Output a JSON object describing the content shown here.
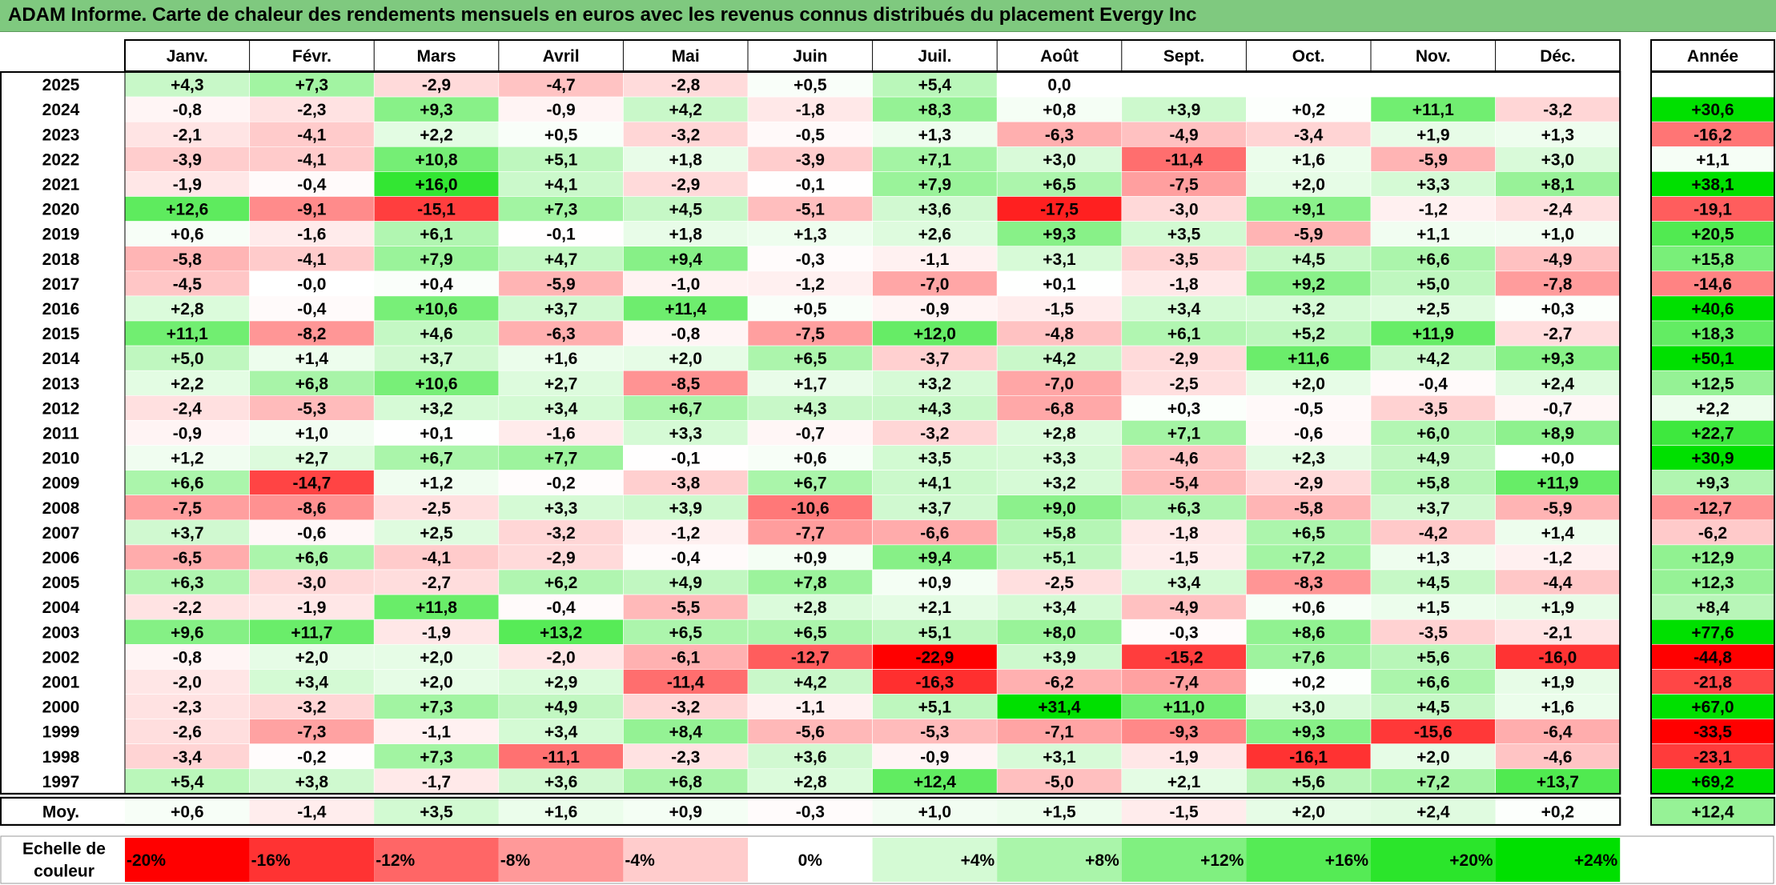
{
  "title": "ADAM Informe. Carte de chaleur des rendements mensuels en euros avec les revenus connus distribués du placement Evergy Inc",
  "chart_data": {
    "type": "heatmap",
    "months": [
      "Janv.",
      "Févr.",
      "Mars",
      "Avril",
      "Mai",
      "Juin",
      "Juil.",
      "Août",
      "Sept.",
      "Oct.",
      "Nov.",
      "Déc."
    ],
    "year_column_label": "Année",
    "average_label": "Moy.",
    "rows": [
      {
        "year": "2025",
        "values": [
          "+4,3",
          "+7,3",
          "-2,9",
          "-4,7",
          "-2,8",
          "+0,5",
          "+5,4",
          "0,0",
          "",
          "",
          "",
          ""
        ],
        "annual": ""
      },
      {
        "year": "2024",
        "values": [
          "-0,8",
          "-2,3",
          "+9,3",
          "-0,9",
          "+4,2",
          "-1,8",
          "+8,3",
          "+0,8",
          "+3,9",
          "+0,2",
          "+11,1",
          "-3,2"
        ],
        "annual": "+30,6"
      },
      {
        "year": "2023",
        "values": [
          "-2,1",
          "-4,1",
          "+2,2",
          "+0,5",
          "-3,2",
          "-0,5",
          "+1,3",
          "-6,3",
          "-4,9",
          "-3,4",
          "+1,9",
          "+1,3"
        ],
        "annual": "-16,2"
      },
      {
        "year": "2022",
        "values": [
          "-3,9",
          "-4,1",
          "+10,8",
          "+5,1",
          "+1,8",
          "-3,9",
          "+7,1",
          "+3,0",
          "-11,4",
          "+1,6",
          "-5,9",
          "+3,0"
        ],
        "annual": "+1,1"
      },
      {
        "year": "2021",
        "values": [
          "-1,9",
          "-0,4",
          "+16,0",
          "+4,1",
          "-2,9",
          "-0,1",
          "+7,9",
          "+6,5",
          "-7,5",
          "+2,0",
          "+3,3",
          "+8,1"
        ],
        "annual": "+38,1"
      },
      {
        "year": "2020",
        "values": [
          "+12,6",
          "-9,1",
          "-15,1",
          "+7,3",
          "+4,5",
          "-5,1",
          "+3,6",
          "-17,5",
          "-3,0",
          "+9,1",
          "-1,2",
          "-2,4"
        ],
        "annual": "-19,1"
      },
      {
        "year": "2019",
        "values": [
          "+0,6",
          "-1,6",
          "+6,1",
          "-0,1",
          "+1,8",
          "+1,3",
          "+2,6",
          "+9,3",
          "+3,5",
          "-5,9",
          "+1,1",
          "+1,0"
        ],
        "annual": "+20,5"
      },
      {
        "year": "2018",
        "values": [
          "-5,8",
          "-4,1",
          "+7,9",
          "+4,7",
          "+9,4",
          "-0,3",
          "-1,1",
          "+3,1",
          "-3,5",
          "+4,5",
          "+6,6",
          "-4,9"
        ],
        "annual": "+15,8"
      },
      {
        "year": "2017",
        "values": [
          "-4,5",
          "-0,0",
          "+0,4",
          "-5,9",
          "-1,0",
          "-1,2",
          "-7,0",
          "+0,1",
          "-1,8",
          "+9,2",
          "+5,0",
          "-7,8"
        ],
        "annual": "-14,6"
      },
      {
        "year": "2016",
        "values": [
          "+2,8",
          "-0,4",
          "+10,6",
          "+3,7",
          "+11,4",
          "+0,5",
          "-0,9",
          "-1,5",
          "+3,4",
          "+3,2",
          "+2,5",
          "+0,3"
        ],
        "annual": "+40,6"
      },
      {
        "year": "2015",
        "values": [
          "+11,1",
          "-8,2",
          "+4,6",
          "-6,3",
          "-0,8",
          "-7,5",
          "+12,0",
          "-4,8",
          "+6,1",
          "+5,2",
          "+11,9",
          "-2,7"
        ],
        "annual": "+18,3"
      },
      {
        "year": "2014",
        "values": [
          "+5,0",
          "+1,4",
          "+3,7",
          "+1,6",
          "+2,0",
          "+6,5",
          "-3,7",
          "+4,2",
          "-2,9",
          "+11,6",
          "+4,2",
          "+9,3"
        ],
        "annual": "+50,1"
      },
      {
        "year": "2013",
        "values": [
          "+2,2",
          "+6,8",
          "+10,6",
          "+2,7",
          "-8,5",
          "+1,7",
          "+3,2",
          "-7,0",
          "-2,5",
          "+2,0",
          "-0,4",
          "+2,4"
        ],
        "annual": "+12,5"
      },
      {
        "year": "2012",
        "values": [
          "-2,4",
          "-5,3",
          "+3,2",
          "+3,4",
          "+6,7",
          "+4,3",
          "+4,3",
          "-6,8",
          "+0,3",
          "-0,5",
          "-3,5",
          "-0,7"
        ],
        "annual": "+2,2"
      },
      {
        "year": "2011",
        "values": [
          "-0,9",
          "+1,0",
          "+0,1",
          "-1,6",
          "+3,3",
          "-0,7",
          "-3,2",
          "+2,8",
          "+7,1",
          "-0,6",
          "+6,0",
          "+8,9"
        ],
        "annual": "+22,7"
      },
      {
        "year": "2010",
        "values": [
          "+1,2",
          "+2,7",
          "+6,7",
          "+7,7",
          "-0,1",
          "+0,6",
          "+3,5",
          "+3,3",
          "-4,6",
          "+2,3",
          "+4,9",
          "+0,0"
        ],
        "annual": "+30,9"
      },
      {
        "year": "2009",
        "values": [
          "+6,6",
          "-14,7",
          "+1,2",
          "-0,2",
          "-3,8",
          "+6,7",
          "+4,1",
          "+3,2",
          "-5,4",
          "-2,9",
          "+5,8",
          "+11,9"
        ],
        "annual": "+9,3"
      },
      {
        "year": "2008",
        "values": [
          "-7,5",
          "-8,6",
          "-2,5",
          "+3,3",
          "+3,9",
          "-10,6",
          "+3,7",
          "+9,0",
          "+6,3",
          "-5,8",
          "+3,7",
          "-5,9"
        ],
        "annual": "-12,7"
      },
      {
        "year": "2007",
        "values": [
          "+3,7",
          "-0,6",
          "+2,5",
          "-3,2",
          "-1,2",
          "-7,7",
          "-6,6",
          "+5,8",
          "-1,8",
          "+6,5",
          "-4,2",
          "+1,4"
        ],
        "annual": "-6,2"
      },
      {
        "year": "2006",
        "values": [
          "-6,5",
          "+6,6",
          "-4,1",
          "-2,9",
          "-0,4",
          "+0,9",
          "+9,4",
          "+5,1",
          "-1,5",
          "+7,2",
          "+1,3",
          "-1,2"
        ],
        "annual": "+12,9"
      },
      {
        "year": "2005",
        "values": [
          "+6,3",
          "-3,0",
          "-2,7",
          "+6,2",
          "+4,9",
          "+7,8",
          "+0,9",
          "-2,5",
          "+3,4",
          "-8,3",
          "+4,5",
          "-4,4"
        ],
        "annual": "+12,3"
      },
      {
        "year": "2004",
        "values": [
          "-2,2",
          "-1,9",
          "+11,8",
          "-0,4",
          "-5,5",
          "+2,8",
          "+2,1",
          "+3,4",
          "-4,9",
          "+0,6",
          "+1,5",
          "+1,9"
        ],
        "annual": "+8,4"
      },
      {
        "year": "2003",
        "values": [
          "+9,6",
          "+11,7",
          "-1,9",
          "+13,2",
          "+6,5",
          "+6,5",
          "+5,1",
          "+8,0",
          "-0,3",
          "+8,6",
          "-3,5",
          "-2,1"
        ],
        "annual": "+77,6"
      },
      {
        "year": "2002",
        "values": [
          "-0,8",
          "+2,0",
          "+2,0",
          "-2,0",
          "-6,1",
          "-12,7",
          "-22,9",
          "+3,9",
          "-15,2",
          "+7,6",
          "+5,6",
          "-16,0"
        ],
        "annual": "-44,8"
      },
      {
        "year": "2001",
        "values": [
          "-2,0",
          "+3,4",
          "+2,0",
          "+2,9",
          "-11,4",
          "+4,2",
          "-16,3",
          "-6,2",
          "-7,4",
          "+0,2",
          "+6,6",
          "+1,9"
        ],
        "annual": "-21,8"
      },
      {
        "year": "2000",
        "values": [
          "-2,3",
          "-3,2",
          "+7,3",
          "+4,9",
          "-3,2",
          "-1,1",
          "+5,1",
          "+31,4",
          "+11,0",
          "+3,0",
          "+4,5",
          "+1,6"
        ],
        "annual": "+67,0"
      },
      {
        "year": "1999",
        "values": [
          "-2,6",
          "-7,3",
          "-1,1",
          "+3,4",
          "+8,4",
          "-5,6",
          "-5,3",
          "-7,1",
          "-9,3",
          "+9,3",
          "-15,6",
          "-6,4"
        ],
        "annual": "-33,5"
      },
      {
        "year": "1998",
        "values": [
          "-3,4",
          "-0,2",
          "+7,3",
          "-11,1",
          "-2,3",
          "+3,6",
          "-0,9",
          "+3,1",
          "-1,9",
          "-16,1",
          "+2,0",
          "-4,6"
        ],
        "annual": "-23,1"
      },
      {
        "year": "1997",
        "values": [
          "+5,4",
          "+3,8",
          "-1,7",
          "+3,6",
          "+6,8",
          "+2,8",
          "+12,4",
          "-5,0",
          "+2,1",
          "+5,6",
          "+7,2",
          "+13,7"
        ],
        "annual": "+69,2"
      }
    ],
    "average": {
      "values": [
        "+0,6",
        "-1,4",
        "+3,5",
        "+1,6",
        "+0,9",
        "-0,3",
        "+1,0",
        "+1,5",
        "-1,5",
        "+2,0",
        "+2,4",
        "+0,2"
      ],
      "annual": "+12,4"
    },
    "scale_label": "Echelle de couleur",
    "scale": [
      {
        "label": "-20%",
        "value": -20,
        "color": "#ff0000"
      },
      {
        "label": "-16%",
        "value": -16,
        "color": "#ff3333"
      },
      {
        "label": "-12%",
        "value": -12,
        "color": "#ff6666"
      },
      {
        "label": "-8%",
        "value": -8,
        "color": "#ff9999"
      },
      {
        "label": "-4%",
        "value": -4,
        "color": "#ffcccc"
      },
      {
        "label": "0%",
        "value": 0,
        "color": "#ffffff"
      },
      {
        "label": "+4%",
        "value": 4,
        "color": "#d4fad4"
      },
      {
        "label": "+8%",
        "value": 8,
        "color": "#aaf5aa"
      },
      {
        "label": "+12%",
        "value": 12,
        "color": "#80f080"
      },
      {
        "label": "+16%",
        "value": 16,
        "color": "#55eb55"
      },
      {
        "label": "+20%",
        "value": 20,
        "color": "#2be52b"
      },
      {
        "label": "+24%",
        "value": 24,
        "color": "#00e000"
      }
    ]
  }
}
